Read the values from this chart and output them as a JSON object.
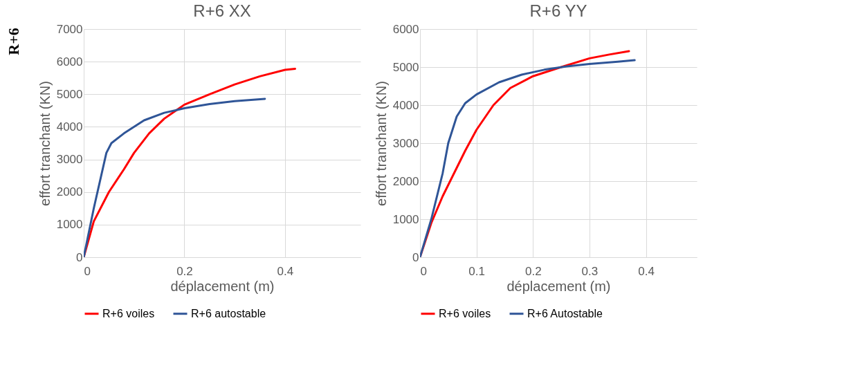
{
  "chart_data": [
    {
      "type": "line",
      "title": "R+6 XX",
      "xlabel": "déplacement (m)",
      "ylabel": "effort tranchant (KN)",
      "annotations": [
        "R+6"
      ],
      "xlim": [
        0,
        0.55
      ],
      "xticks": [
        0,
        0.2,
        0.4
      ],
      "ylim": [
        0,
        7000
      ],
      "yticks": [
        0,
        1000,
        2000,
        3000,
        4000,
        5000,
        6000,
        7000
      ],
      "grid": true,
      "legend": "bottom",
      "marker": "none",
      "series": [
        {
          "name": "R+6 voiles",
          "color": "#ff0000",
          "x": [
            0,
            0.02,
            0.05,
            0.08,
            0.1,
            0.13,
            0.16,
            0.2,
            0.25,
            0.3,
            0.35,
            0.4,
            0.42
          ],
          "values": [
            0,
            1100,
            2000,
            2700,
            3200,
            3800,
            4250,
            4680,
            5000,
            5300,
            5550,
            5750,
            5780
          ]
        },
        {
          "name": "R+6 autostable",
          "color": "#2f5597",
          "x": [
            0,
            0.02,
            0.045,
            0.055,
            0.08,
            0.12,
            0.16,
            0.2,
            0.25,
            0.3,
            0.36
          ],
          "values": [
            0,
            1500,
            3200,
            3500,
            3800,
            4200,
            4430,
            4570,
            4700,
            4790,
            4860
          ]
        }
      ]
    },
    {
      "type": "line",
      "title": "R+6 YY",
      "xlabel": "déplacement (m)",
      "ylabel": "effort tranchant (KN)",
      "xlim": [
        0,
        0.49
      ],
      "xticks": [
        0,
        0.1,
        0.2,
        0.3,
        0.4
      ],
      "ylim": [
        0,
        6000
      ],
      "yticks": [
        0,
        1000,
        2000,
        3000,
        4000,
        5000,
        6000
      ],
      "grid": true,
      "legend": "bottom",
      "marker": "none",
      "series": [
        {
          "name": "R+6 voiles",
          "color": "#ff0000",
          "x": [
            0,
            0.02,
            0.04,
            0.06,
            0.08,
            0.1,
            0.13,
            0.16,
            0.2,
            0.25,
            0.3,
            0.335,
            0.37
          ],
          "values": [
            0,
            900,
            1600,
            2200,
            2800,
            3350,
            4000,
            4450,
            4760,
            5000,
            5230,
            5330,
            5420
          ]
        },
        {
          "name": "R+6 Autostable",
          "color": "#2f5597",
          "x": [
            0,
            0.02,
            0.04,
            0.05,
            0.065,
            0.08,
            0.1,
            0.14,
            0.18,
            0.22,
            0.26,
            0.3,
            0.35,
            0.38
          ],
          "values": [
            0,
            1000,
            2200,
            3000,
            3700,
            4050,
            4280,
            4600,
            4800,
            4930,
            5020,
            5080,
            5140,
            5180
          ]
        }
      ]
    }
  ]
}
